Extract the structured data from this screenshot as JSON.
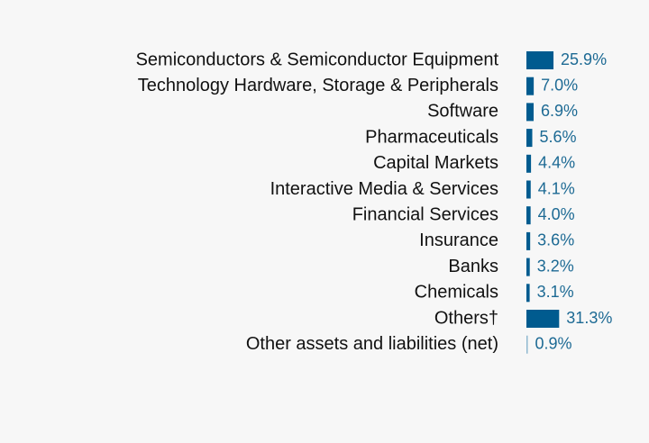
{
  "chart_data": {
    "type": "hbar",
    "categories": [
      "Semiconductors & Semiconductor Equipment",
      "Technology Hardware, Storage & Peripherals",
      "Software",
      "Pharmaceuticals",
      "Capital Markets",
      "Interactive Media & Services",
      "Financial Services",
      "Insurance",
      "Banks",
      "Chemicals",
      "Others†",
      "Other assets and liabilities (net)"
    ],
    "values": [
      25.9,
      7.0,
      6.9,
      5.6,
      4.4,
      4.1,
      4.0,
      3.6,
      3.2,
      3.1,
      31.3,
      0.9
    ],
    "value_labels": [
      "25.9%",
      "7.0%",
      "6.9%",
      "5.6%",
      "4.4%",
      "4.1%",
      "4.0%",
      "3.6%",
      "3.2%",
      "3.1%",
      "31.3%",
      "0.9%"
    ],
    "colors": [
      "#005b8f",
      "#005b8f",
      "#005b8f",
      "#005b8f",
      "#005b8f",
      "#005b8f",
      "#005b8f",
      "#005b8f",
      "#005b8f",
      "#005b8f",
      "#005b8f",
      "#8fb8d0"
    ]
  }
}
